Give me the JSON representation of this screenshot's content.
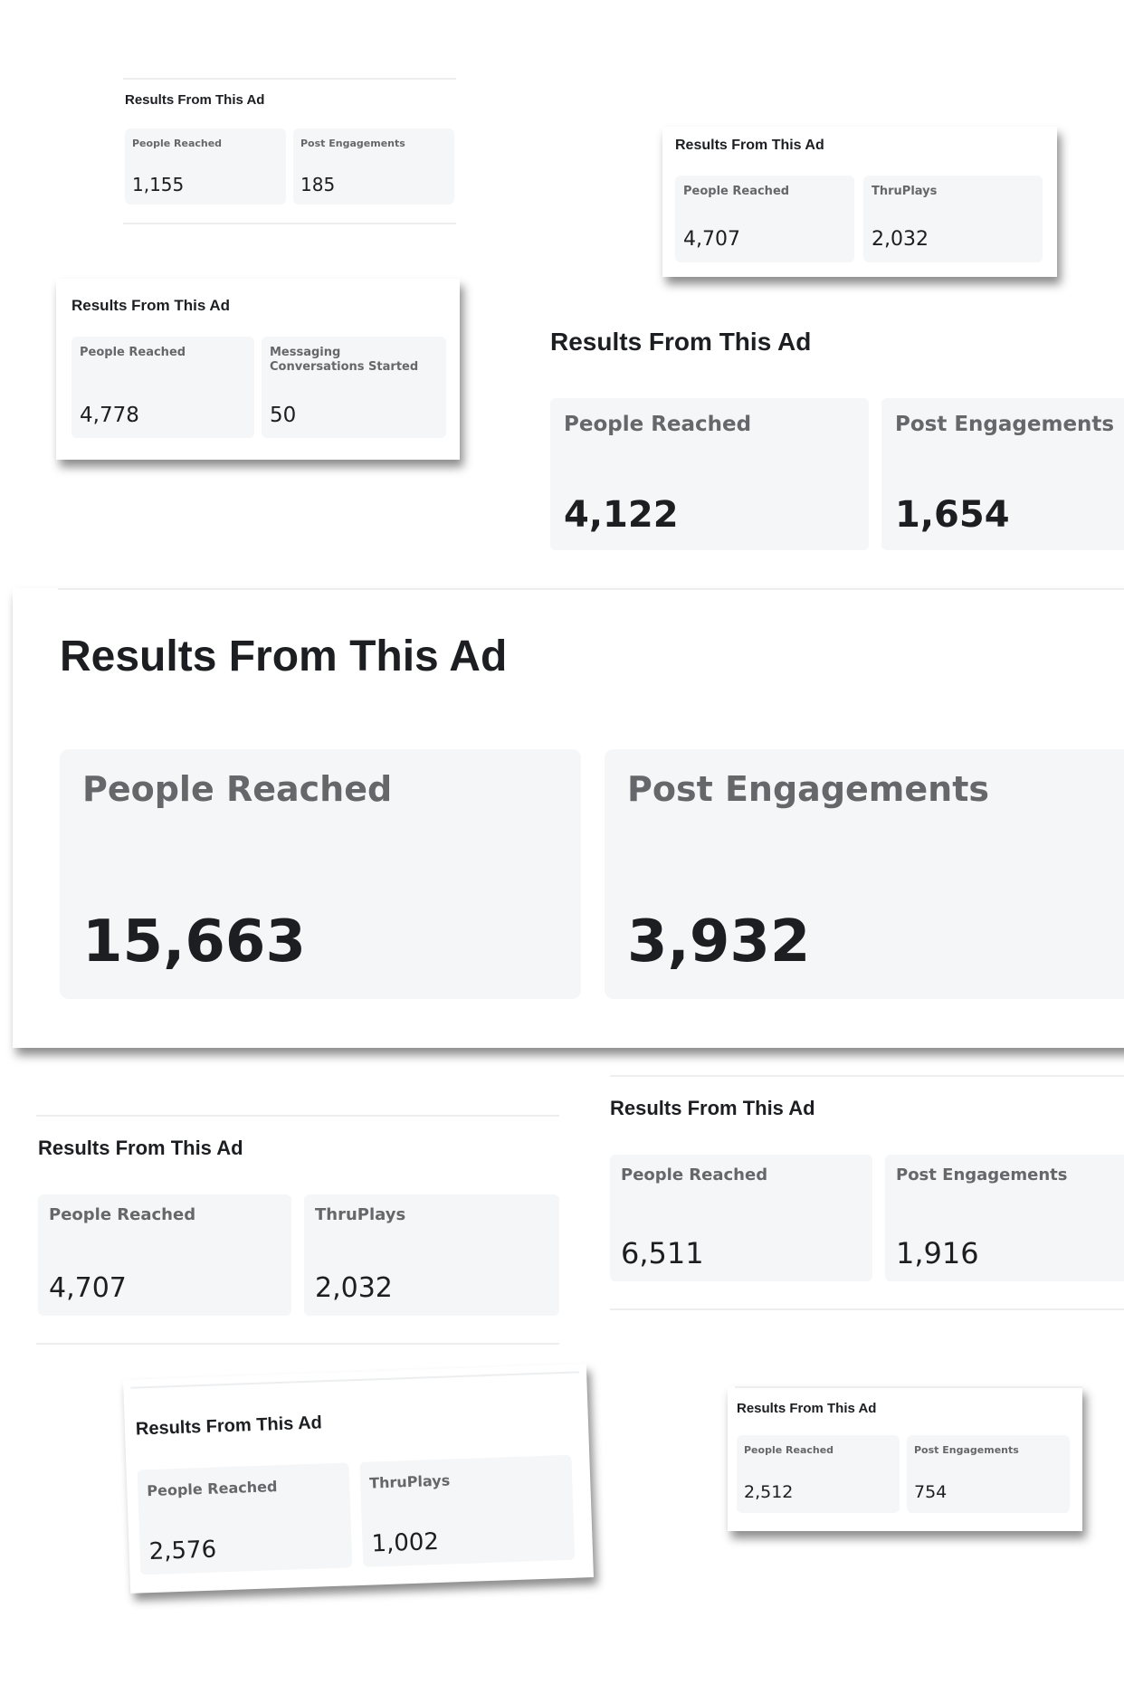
{
  "panels": [
    {
      "title": "Results From This Ad",
      "metrics": [
        {
          "label": "People Reached",
          "value": "1,155"
        },
        {
          "label": "Post Engagements",
          "value": "185"
        }
      ]
    },
    {
      "title": "Results From This Ad",
      "metrics": [
        {
          "label": "People Reached",
          "value": "4,707"
        },
        {
          "label": "ThruPlays",
          "value": "2,032"
        }
      ]
    },
    {
      "title": "Results From This Ad",
      "metrics": [
        {
          "label": "People Reached",
          "value": "4,778"
        },
        {
          "label": "Messaging Conversations Started",
          "value": "50"
        }
      ]
    },
    {
      "title": "Results From This Ad",
      "metrics": [
        {
          "label": "People Reached",
          "value": "4,122"
        },
        {
          "label": "Post Engagements",
          "value": "1,654"
        }
      ]
    },
    {
      "title": "Results From This Ad",
      "metrics": [
        {
          "label": "People Reached",
          "value": "15,663"
        },
        {
          "label": "Post Engagements",
          "value": "3,932"
        }
      ]
    },
    {
      "title": "Results From This Ad",
      "metrics": [
        {
          "label": "People Reached",
          "value": "4,707"
        },
        {
          "label": "ThruPlays",
          "value": "2,032"
        }
      ]
    },
    {
      "title": "Results From This Ad",
      "metrics": [
        {
          "label": "People Reached",
          "value": "6,511"
        },
        {
          "label": "Post Engagements",
          "value": "1,916"
        }
      ]
    },
    {
      "title": "Results From This Ad",
      "metrics": [
        {
          "label": "People Reached",
          "value": "2,576"
        },
        {
          "label": "ThruPlays",
          "value": "1,002"
        }
      ]
    },
    {
      "title": "Results From This Ad",
      "metrics": [
        {
          "label": "People Reached",
          "value": "2,512"
        },
        {
          "label": "Post Engagements",
          "value": "754"
        }
      ]
    }
  ]
}
